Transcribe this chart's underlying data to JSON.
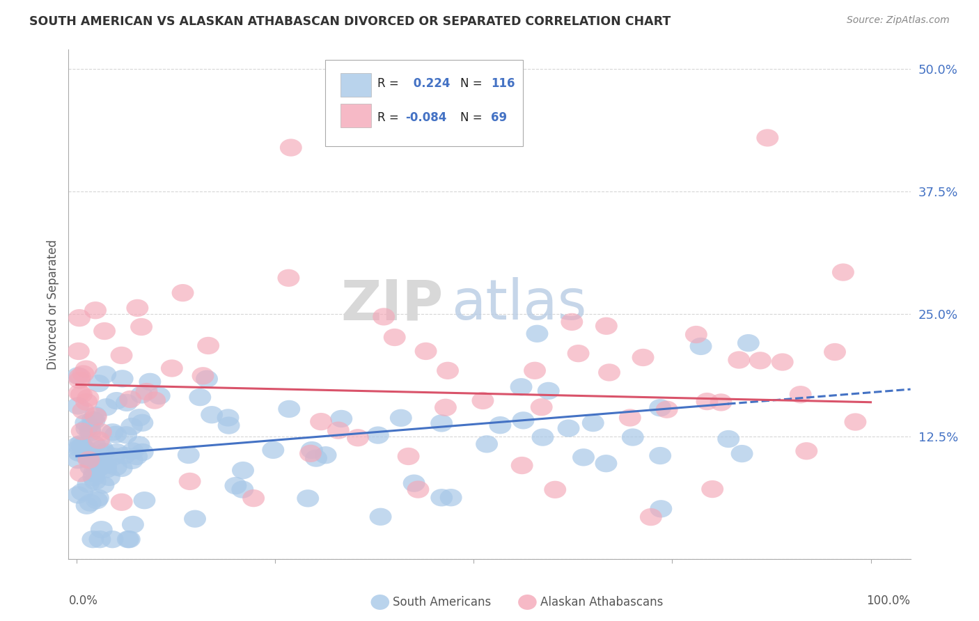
{
  "title": "SOUTH AMERICAN VS ALASKAN ATHABASCAN DIVORCED OR SEPARATED CORRELATION CHART",
  "source": "Source: ZipAtlas.com",
  "ylabel": "Divorced or Separated",
  "legend_label1": "South Americans",
  "legend_label2": "Alaskan Athabascans",
  "r1": 0.224,
  "n1": 116,
  "r2": -0.084,
  "n2": 69,
  "color1": "#a8c8e8",
  "color2": "#f4a8b8",
  "line1_color": "#4472c4",
  "line2_color": "#d9536a",
  "background_color": "#ffffff",
  "grid_color": "#cccccc",
  "ylim": [
    0.0,
    0.52
  ],
  "xlim": [
    -0.01,
    1.05
  ],
  "yticks": [
    0.0,
    0.125,
    0.25,
    0.375,
    0.5
  ],
  "ytick_labels": [
    "",
    "12.5%",
    "25.0%",
    "37.5%",
    "50.0%"
  ],
  "title_color": "#333333",
  "source_color": "#888888",
  "value_color": "#4472c4",
  "watermark_zip": "ZIP",
  "watermark_atlas": "atlas",
  "seed": 7
}
